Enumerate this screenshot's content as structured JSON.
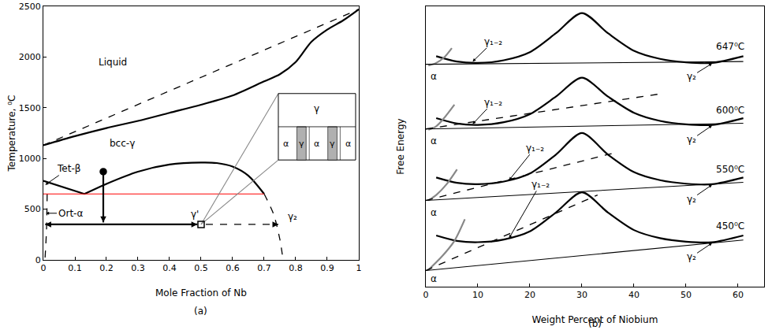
{
  "chart_data": [
    {
      "type": "line",
      "caption": "(a)",
      "xlabel": "Mole Fraction of Nb",
      "ylabel": "Temperature, ⁰C",
      "xlim": [
        0,
        1
      ],
      "ylim": [
        0,
        2500
      ],
      "xticks": [
        0,
        0.1,
        0.2,
        0.3,
        0.4,
        0.5,
        0.6,
        0.7,
        0.8,
        0.9,
        1
      ],
      "yticks": [
        0,
        500,
        1000,
        1500,
        2000,
        2500
      ],
      "grid": false,
      "lines": [
        {
          "x": [
            0,
            1
          ],
          "y": [
            1130,
            2470
          ],
          "color": "#000000",
          "line_style": "dashed"
        },
        {
          "x": [
            0,
            0.1,
            0.2,
            0.3,
            0.4,
            0.5,
            0.6,
            0.7,
            0.75,
            0.8,
            0.85,
            0.9,
            0.95,
            1
          ],
          "y": [
            1130,
            1220,
            1300,
            1370,
            1450,
            1530,
            1620,
            1760,
            1830,
            1950,
            2150,
            2270,
            2360,
            2470
          ],
          "color": "#000000",
          "line_style": "thick"
        },
        {
          "x": [
            0,
            0.13
          ],
          "y": [
            780,
            650
          ],
          "color": "#000000",
          "line_style": "thick"
        },
        {
          "x": [
            0.13,
            0.2,
            0.3,
            0.4,
            0.5,
            0.55,
            0.6,
            0.65,
            0.7
          ],
          "y": [
            650,
            750,
            870,
            940,
            960,
            955,
            920,
            830,
            650
          ],
          "color": "#000000",
          "line_style": "thick"
        },
        {
          "x": [
            0.7,
            0.73,
            0.75,
            0.76
          ],
          "y": [
            650,
            450,
            200,
            0
          ],
          "color": "#000000",
          "line_style": "dashed"
        },
        {
          "x": [
            0.012,
            0.01,
            0.005
          ],
          "y": [
            650,
            300,
            0
          ],
          "color": "#000000",
          "line_style": "dashed"
        },
        {
          "x": [
            0,
            0.7
          ],
          "y": [
            650,
            650
          ],
          "color": "#ff0000",
          "line_style": "solid"
        },
        {
          "x": [
            0.5,
            0.745
          ],
          "y": [
            350,
            985
          ],
          "color": "#888888",
          "line_style": "solid"
        },
        {
          "x": [
            0.5,
            0.745
          ],
          "y": [
            350,
            1640
          ],
          "color": "#888888",
          "line_style": "solid"
        }
      ],
      "arrows": [
        {
          "from": [
            0.19,
            870
          ],
          "to": [
            0.19,
            370
          ],
          "color": "#000000",
          "line_style": "thick"
        },
        {
          "from": [
            0.25,
            350
          ],
          "to": [
            0.006,
            350
          ],
          "color": "#000000",
          "line_style": "thick"
        },
        {
          "from": [
            0.25,
            350
          ],
          "to": [
            0.488,
            350
          ],
          "color": "#000000",
          "line_style": "thick"
        },
        {
          "from": [
            0.515,
            350
          ],
          "to": [
            0.745,
            350
          ],
          "color": "#000000",
          "line_style": "dashed"
        }
      ],
      "points": [
        {
          "x": 0.19,
          "y": 870,
          "marker": "circle",
          "color": "#000000"
        },
        {
          "x": 0.5,
          "y": 350,
          "marker": "square-open",
          "color": "#000000"
        }
      ],
      "annotations": [
        {
          "text": "Liquid",
          "x": 0.22,
          "y": 1950
        },
        {
          "text": "bcc-γ",
          "x": 0.25,
          "y": 1150
        },
        {
          "text": "Tet-β",
          "x": 0.006,
          "y": 740,
          "ax": 0.08,
          "ay": 900
        },
        {
          "text": "Ort-α",
          "x": 0.008,
          "y": 460,
          "ax": 0.085,
          "ay": 460
        },
        {
          "text": "γ'",
          "x": 0.48,
          "y": 450
        },
        {
          "text": "γ₂",
          "x": 0.79,
          "y": 430
        }
      ],
      "inset": {
        "xlim": [
          0.745,
          0.99
        ],
        "ylim": [
          985,
          1640
        ],
        "top_label": "γ",
        "cells": [
          "α",
          "γ",
          "α",
          "γ",
          "α"
        ]
      }
    },
    {
      "type": "line",
      "caption": "(b)",
      "xlabel": "Weight Percent of Niobium",
      "ylabel": "Free Energy",
      "xlim": [
        0,
        65
      ],
      "ylim": [
        -0.4,
        10
      ],
      "xticks": [
        0,
        10,
        20,
        30,
        40,
        50,
        60
      ],
      "grid": false,
      "tick_labels": "x",
      "lines": [
        {
          "x": [
            2,
            6,
            10,
            15,
            20,
            25,
            30,
            35,
            40,
            45,
            50,
            55,
            61
          ],
          "y": [
            8.15,
            7.95,
            7.9,
            8.0,
            8.3,
            9.0,
            9.75,
            9.0,
            8.35,
            8.05,
            7.92,
            7.9,
            8.15
          ],
          "color": "#000000",
          "line_style": "thick"
        },
        {
          "x": [
            2,
            6,
            10,
            15,
            20,
            25,
            30,
            35,
            40,
            45,
            50,
            55,
            61
          ],
          "y": [
            5.85,
            5.65,
            5.6,
            5.7,
            6.0,
            6.65,
            7.35,
            6.65,
            6.05,
            5.75,
            5.62,
            5.6,
            5.85
          ],
          "color": "#000000",
          "line_style": "thick"
        },
        {
          "x": [
            2,
            6,
            10,
            15,
            20,
            25,
            30,
            35,
            40,
            45,
            50,
            55,
            61
          ],
          "y": [
            3.65,
            3.45,
            3.4,
            3.5,
            3.8,
            4.5,
            5.3,
            4.5,
            3.85,
            3.55,
            3.42,
            3.4,
            3.65
          ],
          "color": "#000000",
          "line_style": "thick"
        },
        {
          "x": [
            2,
            6,
            10,
            15,
            20,
            25,
            30,
            35,
            40,
            45,
            50,
            55,
            61
          ],
          "y": [
            1.5,
            1.3,
            1.25,
            1.35,
            1.65,
            2.35,
            3.1,
            2.35,
            1.7,
            1.4,
            1.27,
            1.25,
            1.5
          ],
          "color": "#000000",
          "line_style": "thick"
        },
        {
          "x": [
            0.5,
            2,
            3.5,
            5
          ],
          "y": [
            7.8,
            7.9,
            8.1,
            8.45
          ],
          "color": "#888888",
          "line_style": "thick"
        },
        {
          "x": [
            0.5,
            2,
            3.5,
            5.5
          ],
          "y": [
            5.42,
            5.55,
            5.85,
            6.35
          ],
          "color": "#888888",
          "line_style": "thick"
        },
        {
          "x": [
            0.5,
            2,
            4,
            6
          ],
          "y": [
            2.8,
            3.0,
            3.4,
            3.95
          ],
          "color": "#888888",
          "line_style": "thick"
        },
        {
          "x": [
            0.5,
            3,
            5.5,
            7.5
          ],
          "y": [
            0.22,
            0.7,
            1.3,
            2.1
          ],
          "color": "#888888",
          "line_style": "thick"
        },
        {
          "x": [
            0,
            61
          ],
          "y": [
            7.85,
            7.95
          ],
          "color": "#000000",
          "line_style": "solid"
        },
        {
          "x": [
            0,
            61
          ],
          "y": [
            5.45,
            5.66
          ],
          "color": "#000000",
          "line_style": "solid"
        },
        {
          "x": [
            0,
            61
          ],
          "y": [
            2.8,
            3.47
          ],
          "color": "#000000",
          "line_style": "solid"
        },
        {
          "x": [
            0,
            61
          ],
          "y": [
            0.2,
            1.33
          ],
          "color": "#000000",
          "line_style": "solid"
        },
        {
          "x": [
            0,
            45
          ],
          "y": [
            5.45,
            6.75
          ],
          "color": "#000000",
          "line_style": "dashed"
        },
        {
          "x": [
            0,
            37
          ],
          "y": [
            2.8,
            4.6
          ],
          "color": "#000000",
          "line_style": "dashed"
        },
        {
          "x": [
            0,
            33
          ],
          "y": [
            0.2,
            3.0
          ],
          "color": "#000000",
          "line_style": "dashed"
        }
      ],
      "annotations": [
        {
          "text": "647⁰C",
          "x": 58.5,
          "y": 8.5
        },
        {
          "text": "600⁰C",
          "x": 58.5,
          "y": 6.15
        },
        {
          "text": "550⁰C",
          "x": 58.5,
          "y": 3.95
        },
        {
          "text": "450⁰C",
          "x": 58.5,
          "y": 1.85
        },
        {
          "text": "γ₁₋₂",
          "x": 9,
          "y": 7.95,
          "ax": 13,
          "ay": 8.7
        },
        {
          "text": "γ₁₋₂",
          "x": 9,
          "y": 5.63,
          "ax": 13,
          "ay": 6.45
        },
        {
          "text": "γ₁₋₂",
          "x": 16,
          "y": 3.55,
          "ax": 21,
          "ay": 4.75
        },
        {
          "text": "γ₁₋₂",
          "x": 16,
          "y": 1.4,
          "ax": 22,
          "ay": 3.4
        },
        {
          "text": "γ₂",
          "x": 55,
          "y": 7.88,
          "ax": 51,
          "ay": 7.4
        },
        {
          "text": "γ₂",
          "x": 55,
          "y": 5.58,
          "ax": 51,
          "ay": 5.05
        },
        {
          "text": "γ₂",
          "x": 55,
          "y": 3.38,
          "ax": 51,
          "ay": 2.85
        },
        {
          "text": "γ₂",
          "x": 55,
          "y": 1.22,
          "ax": 51,
          "ay": 0.7
        },
        {
          "text": "α",
          "x": 1.5,
          "y": 7.4
        },
        {
          "text": "α",
          "x": 1.5,
          "y": 5.0
        },
        {
          "text": "α",
          "x": 1.5,
          "y": 2.35
        },
        {
          "text": "α",
          "x": 1.5,
          "y": -0.12
        }
      ]
    }
  ]
}
